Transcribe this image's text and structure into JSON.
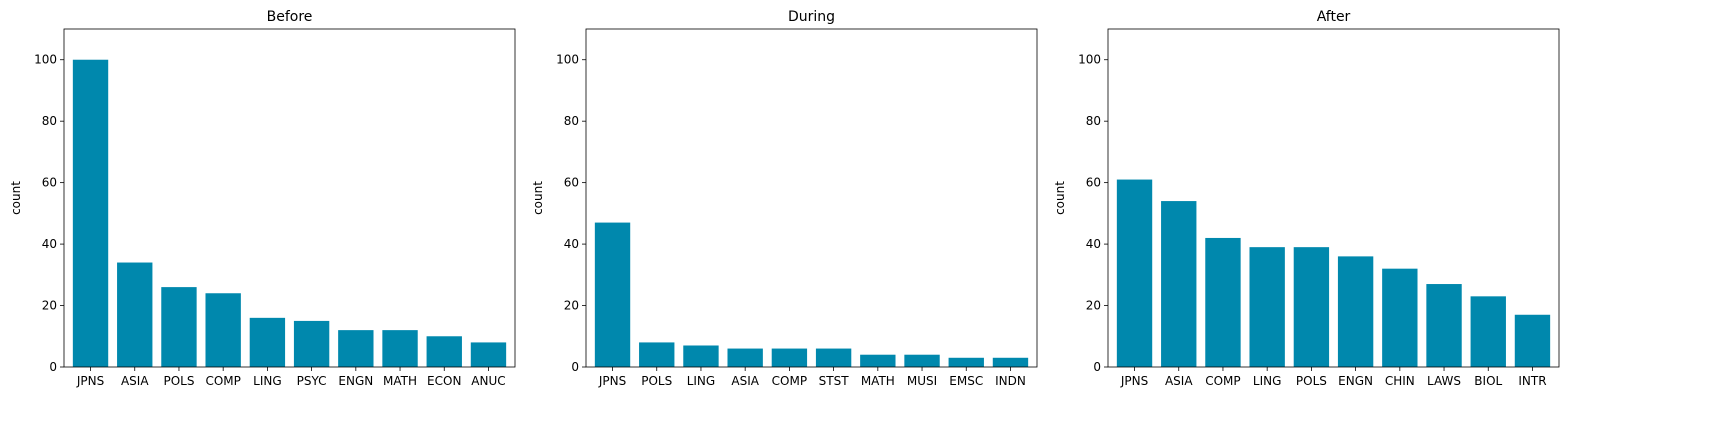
{
  "chart_data": [
    {
      "type": "bar",
      "title": "Before",
      "xlabel": "",
      "ylabel": "count",
      "ylim": [
        0,
        110
      ],
      "yticks": [
        0,
        20,
        40,
        60,
        80,
        100
      ],
      "categories": [
        "JPNS",
        "ASIA",
        "POLS",
        "COMP",
        "LING",
        "PSYC",
        "ENGN",
        "MATH",
        "ECON",
        "ANUC"
      ],
      "values": [
        100,
        34,
        26,
        24,
        16,
        15,
        12,
        12,
        10,
        8
      ],
      "color": "#0088ad",
      "grid": false
    },
    {
      "type": "bar",
      "title": "During",
      "xlabel": "",
      "ylabel": "count",
      "ylim": [
        0,
        110
      ],
      "yticks": [
        0,
        20,
        40,
        60,
        80,
        100
      ],
      "categories": [
        "JPNS",
        "POLS",
        "LING",
        "ASIA",
        "COMP",
        "STST",
        "MATH",
        "MUSI",
        "EMSC",
        "INDN"
      ],
      "values": [
        47,
        8,
        7,
        6,
        6,
        6,
        4,
        4,
        3,
        3
      ],
      "color": "#0088ad",
      "grid": false
    },
    {
      "type": "bar",
      "title": "After",
      "xlabel": "",
      "ylabel": "count",
      "ylim": [
        0,
        110
      ],
      "yticks": [
        0,
        20,
        40,
        60,
        80,
        100
      ],
      "categories": [
        "JPNS",
        "ASIA",
        "COMP",
        "LING",
        "POLS",
        "ENGN",
        "CHIN",
        "LAWS",
        "BIOL",
        "INTR"
      ],
      "values": [
        61,
        54,
        42,
        39,
        39,
        36,
        32,
        27,
        23,
        17
      ],
      "color": "#0088ad",
      "grid": false
    }
  ]
}
